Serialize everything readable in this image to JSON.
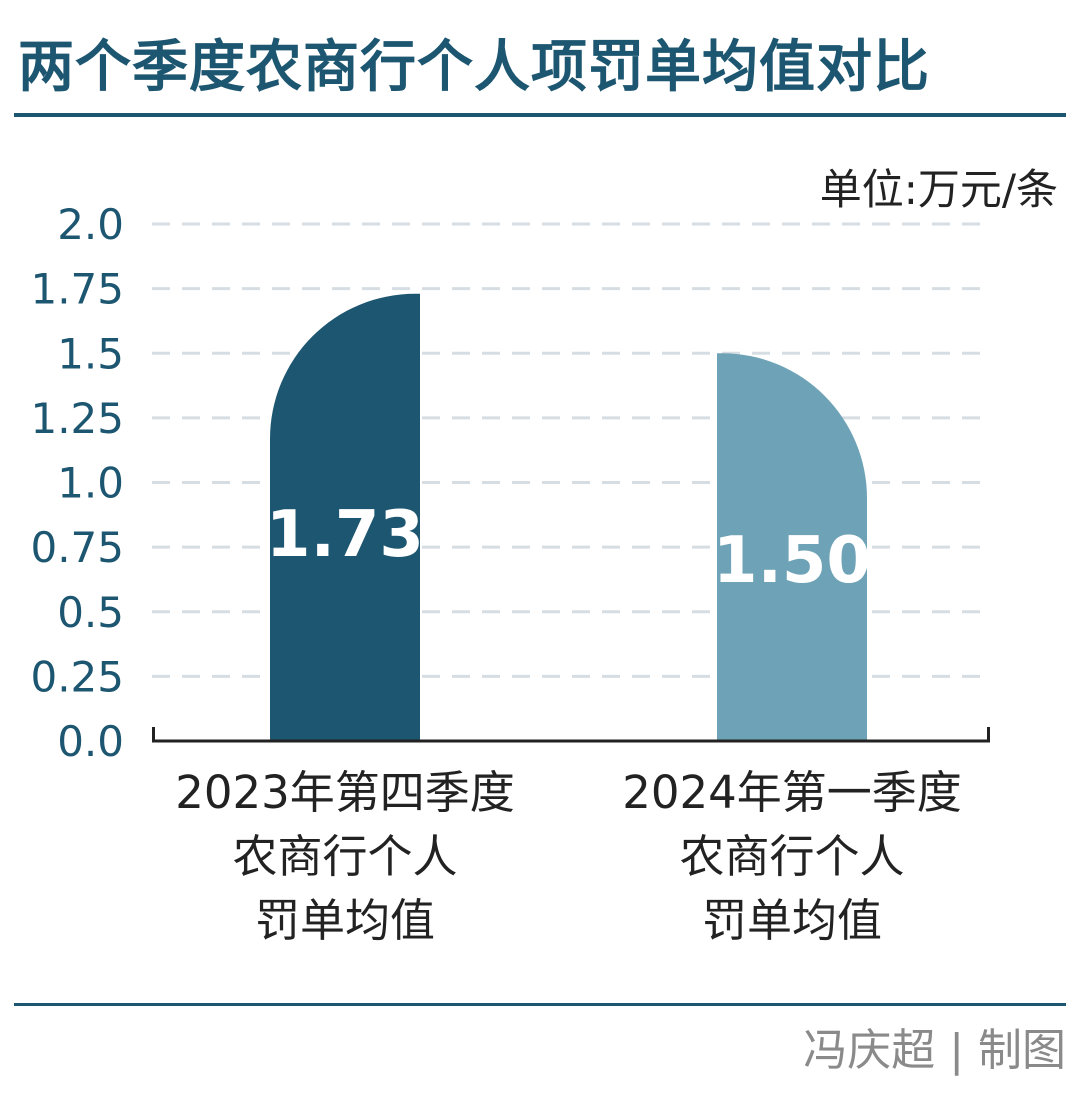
{
  "header": {
    "title": "两个季度农商行个人项罚单均值对比",
    "unit": "单位:万元/条"
  },
  "footer": {
    "credit": "冯庆超 | 制图"
  },
  "colors": {
    "bar1": "#1d5670",
    "bar2": "#6ea3b7",
    "accent": "#1d5670",
    "grid": "#d6dee3"
  },
  "chart_data": {
    "type": "bar",
    "title": "两个季度农商行个人项罚单均值对比",
    "unit": "单位:万元/条",
    "categories": [
      [
        "2023年第四季度",
        "农商行个人",
        "罚单均值"
      ],
      [
        "2024年第一季度",
        "农商行个人",
        "罚单均值"
      ]
    ],
    "values": [
      1.73,
      1.5
    ],
    "data_labels": [
      "1.73",
      "1.50"
    ],
    "ylim": [
      0,
      2.0
    ],
    "yticks": [
      0.0,
      0.25,
      0.5,
      0.75,
      1.0,
      1.25,
      1.5,
      1.75,
      2.0
    ],
    "ytick_labels": [
      "0.0",
      "0.25",
      "0.5",
      "0.75",
      "1.0",
      "1.25",
      "1.5",
      "1.75",
      "2.0"
    ],
    "grid": true
  }
}
